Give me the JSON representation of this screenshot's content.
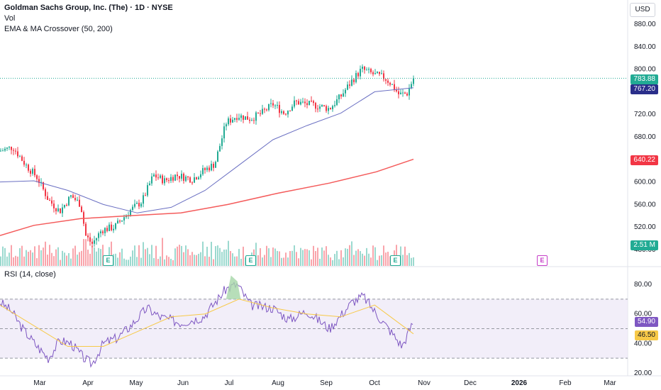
{
  "legend": {
    "title": "Goldman Sachs Group, Inc. (The) · 1D · NYSE",
    "vol": "Vol",
    "indicator": "EMA & MA Crossover (50, 200)"
  },
  "rsi_legend": "RSI (14, close)",
  "currency": "USD",
  "price_axis": [
    "880.00",
    "840.00",
    "800.00",
    "760.00",
    "720.00",
    "680.00",
    "640.00",
    "600.00",
    "560.00",
    "520.00",
    "480.00"
  ],
  "rsi_axis": [
    "80.00",
    "60.00",
    "40.00",
    "20.00"
  ],
  "time_axis": [
    "Mar",
    "Apr",
    "May",
    "Jun",
    "Jul",
    "Aug",
    "Sep",
    "Oct",
    "Nov",
    "Dec",
    "2026",
    "Feb",
    "Mar"
  ],
  "tags": {
    "last_price": "783.88",
    "ema50": "767.20",
    "ma200": "640.22",
    "volume": "2.51 M",
    "rsi": "54.90",
    "rsi_ma": "46.50"
  },
  "earnings_label": "E",
  "colors": {
    "up": "#22ab94",
    "down": "#f23645",
    "ema": "#6a6fc2",
    "ma": "#f45b5b",
    "rsi": "#7e57c2",
    "rsi_ma": "#f7c948",
    "band": "#ede7f6"
  },
  "chart_data": {
    "type": "candlestick",
    "symbol": "Goldman Sachs Group, Inc. (The)",
    "interval": "1D",
    "exchange": "NYSE",
    "last_close": 783.88,
    "ema50_last": 767.2,
    "ma200_last": 640.22,
    "volume_last": "2.51 M",
    "rsi_last": 54.9,
    "rsi_ma_last": 46.5,
    "price_range": [
      460,
      900
    ],
    "rsi_range": [
      17,
      88
    ],
    "rsi_levels": [
      70,
      50,
      30
    ],
    "close_path": [
      [
        "Feb 10",
        655
      ],
      [
        "Feb 18",
        662
      ],
      [
        "Feb 26",
        630
      ],
      [
        "Mar 5",
        608
      ],
      [
        "Mar 12",
        568
      ],
      [
        "Mar 19",
        548
      ],
      [
        "Mar 26",
        575
      ],
      [
        "Apr 1",
        560
      ],
      [
        "Apr 4",
        505
      ],
      [
        "Apr 8",
        490
      ],
      [
        "Apr 14",
        515
      ],
      [
        "Apr 22",
        520
      ],
      [
        "May 1",
        548
      ],
      [
        "May 9",
        566
      ],
      [
        "May 16",
        612
      ],
      [
        "May 23",
        602
      ],
      [
        "May 30",
        612
      ],
      [
        "Jun 9",
        605
      ],
      [
        "Jun 16",
        620
      ],
      [
        "Jun 23",
        632
      ],
      [
        "Jun 30",
        705
      ],
      [
        "Jul 7",
        718
      ],
      [
        "Jul 15",
        712
      ],
      [
        "Jul 22",
        722
      ],
      [
        "Jul 29",
        738
      ],
      [
        "Aug 5",
        722
      ],
      [
        "Aug 12",
        742
      ],
      [
        "Aug 19",
        738
      ],
      [
        "Aug 26",
        735
      ],
      [
        "Sep 2",
        730
      ],
      [
        "Sep 9",
        752
      ],
      [
        "Sep 16",
        780
      ],
      [
        "Sep 22",
        800
      ],
      [
        "Sep 30",
        790
      ],
      [
        "Oct 6",
        785
      ],
      [
        "Oct 10",
        775
      ],
      [
        "Oct 15",
        755
      ],
      [
        "Oct 20",
        757
      ],
      [
        "Oct 24",
        783.88
      ]
    ],
    "ema50_path": [
      [
        "Feb 10",
        600
      ],
      [
        "Mar 3",
        602
      ],
      [
        "Mar 24",
        585
      ],
      [
        "Apr 15",
        560
      ],
      [
        "May 6",
        545
      ],
      [
        "May 27",
        555
      ],
      [
        "Jun 17",
        585
      ],
      [
        "Jul 8",
        630
      ],
      [
        "Jul 29",
        675
      ],
      [
        "Aug 19",
        700
      ],
      [
        "Sep 9",
        722
      ],
      [
        "Sep 30",
        760
      ],
      [
        "Oct 24",
        767.2
      ]
    ],
    "ma200_path": [
      [
        "Feb 10",
        505
      ],
      [
        "Mar 3",
        523
      ],
      [
        "Apr 1",
        535
      ],
      [
        "May 1",
        540
      ],
      [
        "Jun 2",
        545
      ],
      [
        "Jul 1",
        560
      ],
      [
        "Aug 1",
        580
      ],
      [
        "Sep 2",
        598
      ],
      [
        "Oct 1",
        618
      ],
      [
        "Oct 24",
        640.22
      ]
    ],
    "rsi_path": [
      [
        "Feb 10",
        68
      ],
      [
        "Feb 17",
        62
      ],
      [
        "Feb 24",
        50
      ],
      [
        "Mar 5",
        38
      ],
      [
        "Mar 12",
        30
      ],
      [
        "Mar 19",
        42
      ],
      [
        "Mar 26",
        40
      ],
      [
        "Apr 3",
        30
      ],
      [
        "Apr 8",
        26
      ],
      [
        "Apr 15",
        40
      ],
      [
        "Apr 24",
        44
      ],
      [
        "May 2",
        52
      ],
      [
        "May 12",
        64
      ],
      [
        "May 20",
        58
      ],
      [
        "Jun 2",
        54
      ],
      [
        "Jun 16",
        58
      ],
      [
        "Jun 30",
        77
      ],
      [
        "Jul 7",
        80
      ],
      [
        "Jul 15",
        66
      ],
      [
        "Jul 29",
        64
      ],
      [
        "Aug 8",
        56
      ],
      [
        "Aug 19",
        62
      ],
      [
        "Sep 2",
        50
      ],
      [
        "Sep 16",
        68
      ],
      [
        "Sep 23",
        72
      ],
      [
        "Oct 1",
        60
      ],
      [
        "Oct 10",
        48
      ],
      [
        "Oct 17",
        38
      ],
      [
        "Oct 24",
        54.9
      ]
    ],
    "rsi_ma_path": [
      [
        "Feb 10",
        66
      ],
      [
        "Mar 3",
        52
      ],
      [
        "Mar 24",
        38
      ],
      [
        "Apr 15",
        38
      ],
      [
        "May 6",
        48
      ],
      [
        "May 27",
        58
      ],
      [
        "Jun 17",
        60
      ],
      [
        "Jul 8",
        70
      ],
      [
        "Jul 29",
        64
      ],
      [
        "Aug 19",
        60
      ],
      [
        "Sep 9",
        58
      ],
      [
        "Sep 30",
        66
      ],
      [
        "Oct 24",
        46.5
      ]
    ]
  }
}
